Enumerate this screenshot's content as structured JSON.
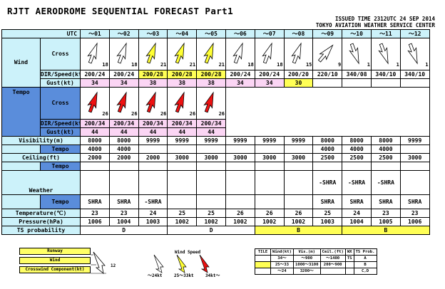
{
  "title": "RJTT  AERODROME SEQUENTIAL FORECAST Part1",
  "issued": "ISSUED TIME 2312UTC 24 SEP 2014",
  "center": "TOKYO AVIATION WEATHER SERVICE CENTER",
  "labels": {
    "utc": "UTC",
    "cross": "Cross",
    "dir_speed": "DIR/Speed(kt)",
    "gust": "Gust(kt)",
    "wind": "Wind",
    "tempo": "Tempo",
    "visibility": "Visibility(m)",
    "ceiling": "Ceiling(ft)",
    "weather": "Weather",
    "temperature": "Temperature(℃)",
    "pressure": "Pressure(hPa)",
    "ts": "TS probability"
  },
  "hours": [
    "～01",
    "～02",
    "～03",
    "～04",
    "～05",
    "～06",
    "～07",
    "～08",
    "～09",
    "～10",
    "～11",
    "～12"
  ],
  "cross": [
    {
      "v": "18",
      "color": "#ffffff",
      "dir": 200
    },
    {
      "v": "18",
      "color": "#ffffff",
      "dir": 200
    },
    {
      "v": "21",
      "color": "#ffff33",
      "dir": 200
    },
    {
      "v": "21",
      "color": "#ffff33",
      "dir": 200
    },
    {
      "v": "21",
      "color": "#ffff33",
      "dir": 200
    },
    {
      "v": "18",
      "color": "#ffffff",
      "dir": 200
    },
    {
      "v": "18",
      "color": "#ffffff",
      "dir": 200
    },
    {
      "v": "15",
      "color": "#ffffff",
      "dir": 200
    },
    {
      "v": "9",
      "color": "#ffffff",
      "dir": 220
    },
    {
      "v": "1",
      "color": "#ffffff",
      "dir": 340
    },
    {
      "v": "1",
      "color": "#ffffff",
      "dir": 340
    },
    {
      "v": "1",
      "color": "#ffffff",
      "dir": 340
    }
  ],
  "dir_speed": [
    "200/24",
    "200/24",
    "200/28",
    "200/28",
    "200/28",
    "200/24",
    "200/24",
    "200/20",
    "220/10",
    "340/08",
    "340/10",
    "340/10"
  ],
  "gust": [
    "34",
    "34",
    "38",
    "38",
    "38",
    "34",
    "34",
    "30",
    "",
    "",
    "",
    ""
  ],
  "tempo_cross": [
    {
      "v": "26",
      "color": "#ee1111",
      "dir": 200
    },
    {
      "v": "26",
      "color": "#ee1111",
      "dir": 200
    },
    {
      "v": "26",
      "color": "#ee1111",
      "dir": 200
    },
    {
      "v": "26",
      "color": "#ee1111",
      "dir": 200
    },
    {
      "v": "26",
      "color": "#ee1111",
      "dir": 200
    }
  ],
  "tempo_dir_speed": [
    "200/34",
    "200/34",
    "200/34",
    "200/34",
    "200/34"
  ],
  "tempo_gust": [
    "44",
    "44",
    "44",
    "44",
    "44"
  ],
  "visibility": [
    "8000",
    "8000",
    "9999",
    "9999",
    "9999",
    "9999",
    "9999",
    "9999",
    "8000",
    "8000",
    "8000",
    "9999"
  ],
  "visibility_tempo": [
    "4000",
    "4000",
    "",
    "",
    "",
    "",
    "",
    "",
    "4000",
    "4000",
    "4000",
    ""
  ],
  "ceiling": [
    "2000",
    "2000",
    "2000",
    "3000",
    "3000",
    "3000",
    "3000",
    "3000",
    "2500",
    "2500",
    "2500",
    "3000"
  ],
  "weather": [
    "",
    "",
    "",
    "",
    "",
    "",
    "",
    "",
    "-SHRA",
    "-SHRA",
    "-SHRA",
    ""
  ],
  "weather_tempo": [
    "SHRA",
    "SHRA",
    "-SHRA",
    "",
    "",
    "",
    "",
    "",
    "SHRA",
    "SHRA",
    "SHRA",
    "SHRA"
  ],
  "temperature": [
    "23",
    "23",
    "24",
    "25",
    "25",
    "26",
    "26",
    "26",
    "25",
    "24",
    "23",
    "23"
  ],
  "pressure": [
    "1006",
    "1004",
    "1003",
    "1002",
    "1002",
    "1002",
    "1002",
    "1002",
    "1003",
    "1004",
    "1005",
    "1006"
  ],
  "ts": [
    {
      "label": "D",
      "span": 3,
      "color": "#ffffff"
    },
    {
      "label": "D",
      "span": 3,
      "color": "#ffffff"
    },
    {
      "label": "B",
      "span": 3,
      "color": "#ffff55"
    },
    {
      "label": "B",
      "span": 3,
      "color": "#ffff55"
    }
  ],
  "legend": {
    "runway": "Runway",
    "wind": "Wind",
    "crosswind": "Crosswind Component(kt)",
    "cw_value": "12",
    "wind_speed": "Wind Speed",
    "s1": "～24kt",
    "s2": "25～33kt",
    "s3": "34kt～",
    "table": {
      "headers": [
        "TILE",
        "Wind(kt)",
        "Vis.(m)",
        "Ceil.(ft)",
        "WX",
        "TS Prob."
      ],
      "rows": [
        [
          "",
          "34～",
          "～900",
          "～1400",
          "TS",
          "A"
        ],
        [
          "",
          "25～33",
          "1000～3100",
          "200～900",
          "",
          "B"
        ],
        [
          "",
          "～24",
          "3200～",
          "",
          "",
          "C,D"
        ]
      ]
    }
  }
}
